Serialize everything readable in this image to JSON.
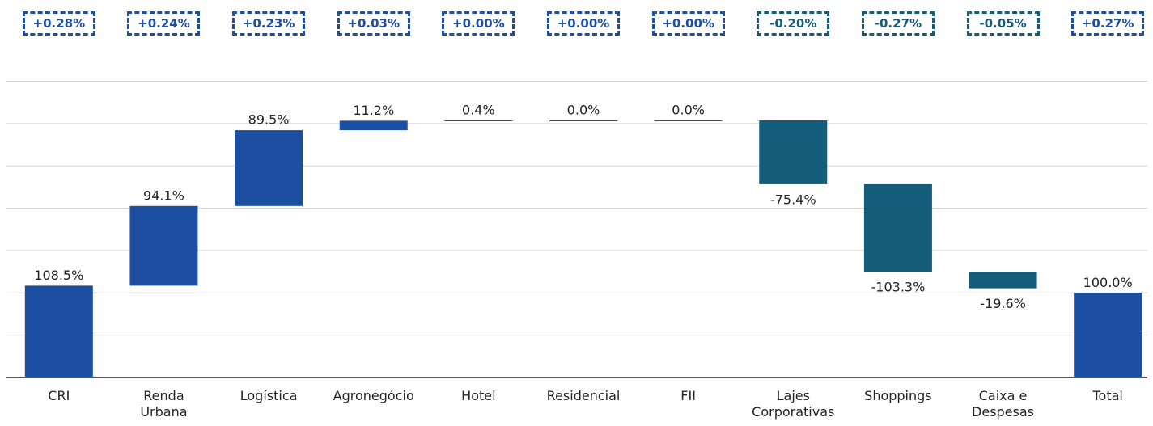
{
  "chart_data": {
    "type": "waterfall",
    "categories": [
      "CRI",
      "Renda Urbana",
      "Logística",
      "Agronegócio",
      "Hotel",
      "Residencial",
      "FII",
      "Lajes Corporativas",
      "Shoppings",
      "Caixa e Despesas",
      "Total"
    ],
    "values": [
      108.5,
      94.1,
      89.5,
      11.2,
      0.4,
      0.0,
      0.0,
      -75.4,
      -103.3,
      -19.6,
      100.0
    ],
    "value_labels": [
      "108.5%",
      "94.1%",
      "89.5%",
      "11.2%",
      "0.4%",
      "0.0%",
      "0.0%",
      "-75.4%",
      "-103.3%",
      "-19.6%",
      "100.0%"
    ],
    "is_total": [
      false,
      false,
      false,
      false,
      false,
      false,
      false,
      false,
      false,
      false,
      true
    ],
    "annotations": [
      "+0.28%",
      "+0.24%",
      "+0.23%",
      "+0.03%",
      "+0.00%",
      "+0.00%",
      "+0.00%",
      "-0.20%",
      "-0.27%",
      "-0.05%",
      "+0.27%"
    ],
    "positive_color": "#1c4fa1",
    "negative_color": "#135c7a",
    "ylim": [
      0,
      360
    ],
    "yticks": [
      0,
      50,
      100,
      150,
      200,
      250,
      300,
      350
    ],
    "grid": true
  }
}
